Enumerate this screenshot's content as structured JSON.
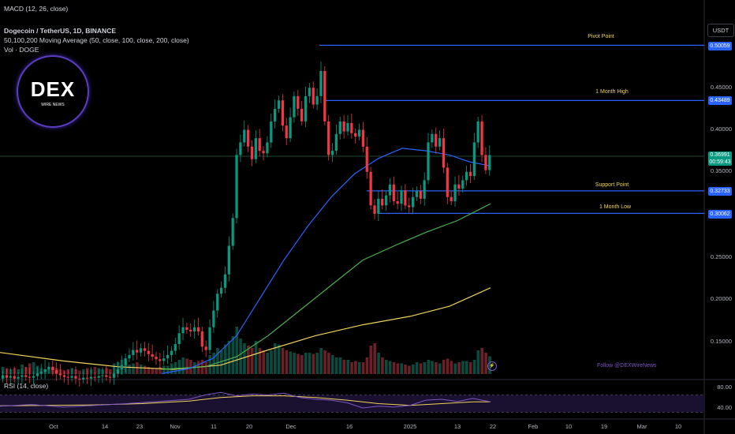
{
  "header": {
    "macd": "MACD (12, 26, close)",
    "symbol": "Dogecoin / TetherUS, 1D, BINANCE",
    "ma": "50,100,200 Moving Average (50, close, 100, close, 200, close)",
    "vol": "Vol · DOGE",
    "rsi": "RSI (14, close)"
  },
  "currency": "USDT",
  "logo": {
    "text": "DEX",
    "sub": "WIRE NEWS"
  },
  "follow": "Follow @DEXWireNews",
  "price_tags": {
    "pivot": "0.50059",
    "high": "0.43489",
    "current": "0.36991",
    "current2": "00:59:43",
    "support": "0.32733",
    "low": "0.30062"
  },
  "level_labels": {
    "pivot": "Pivot Point",
    "high": "1 Month High",
    "support": "Support Point",
    "low": "1 Month Low"
  },
  "colors": {
    "up": "#089981",
    "down": "#f23645",
    "level": "#2962ff",
    "ma50": "#2962ff",
    "ma100": "#4caf50",
    "ma200": "#f0d35a",
    "rsi": "#7e57c2"
  },
  "chart_data": {
    "type": "candlestick",
    "ylim": [
      0.1,
      0.52
    ],
    "y_ticks": [
      "0.45000",
      "0.40000",
      "0.35000",
      "0.25000",
      "0.20000",
      "0.15000"
    ],
    "x_ticks": [
      "Oct",
      "14",
      "23",
      "Nov",
      "11",
      "20",
      "Dec",
      "16",
      "2025",
      "13",
      "22",
      "Feb",
      "10",
      "19",
      "Mar",
      "10"
    ],
    "rsi_ticks": [
      "80.00",
      "40.00"
    ],
    "levels": [
      {
        "name": "Pivot Point",
        "value": 0.50059
      },
      {
        "name": "1 Month High",
        "value": 0.43489
      },
      {
        "name": "Support Point",
        "value": 0.32733
      },
      {
        "name": "1 Month Low",
        "value": 0.30062
      }
    ],
    "candles": [
      [
        0.104,
        0.108
      ],
      [
        0.108,
        0.105
      ],
      [
        0.105,
        0.107
      ],
      [
        0.107,
        0.104
      ],
      [
        0.104,
        0.106
      ],
      [
        0.106,
        0.108
      ],
      [
        0.108,
        0.106
      ],
      [
        0.106,
        0.105
      ],
      [
        0.105,
        0.107
      ],
      [
        0.107,
        0.11
      ],
      [
        0.11,
        0.112
      ],
      [
        0.112,
        0.115
      ],
      [
        0.115,
        0.118
      ],
      [
        0.118,
        0.114
      ],
      [
        0.114,
        0.11
      ],
      [
        0.11,
        0.108
      ],
      [
        0.108,
        0.106
      ],
      [
        0.106,
        0.105
      ],
      [
        0.105,
        0.107
      ],
      [
        0.107,
        0.104
      ],
      [
        0.104,
        0.103
      ],
      [
        0.103,
        0.105
      ],
      [
        0.105,
        0.104
      ],
      [
        0.104,
        0.106
      ],
      [
        0.106,
        0.105
      ],
      [
        0.105,
        0.107
      ],
      [
        0.107,
        0.108
      ],
      [
        0.108,
        0.106
      ],
      [
        0.106,
        0.105
      ],
      [
        0.105,
        0.11
      ],
      [
        0.11,
        0.115
      ],
      [
        0.115,
        0.12
      ],
      [
        0.12,
        0.128
      ],
      [
        0.128,
        0.132
      ],
      [
        0.132,
        0.138
      ],
      [
        0.138,
        0.135
      ],
      [
        0.135,
        0.14
      ],
      [
        0.14,
        0.137
      ],
      [
        0.137,
        0.133
      ],
      [
        0.133,
        0.13
      ],
      [
        0.13,
        0.127
      ],
      [
        0.127,
        0.125
      ],
      [
        0.125,
        0.128
      ],
      [
        0.128,
        0.132
      ],
      [
        0.132,
        0.137
      ],
      [
        0.137,
        0.145
      ],
      [
        0.145,
        0.158
      ],
      [
        0.158,
        0.165
      ],
      [
        0.165,
        0.162
      ],
      [
        0.162,
        0.16
      ],
      [
        0.16,
        0.165
      ],
      [
        0.165,
        0.16
      ],
      [
        0.16,
        0.142
      ],
      [
        0.142,
        0.138
      ],
      [
        0.138,
        0.165
      ],
      [
        0.165,
        0.185
      ],
      [
        0.185,
        0.205
      ],
      [
        0.205,
        0.212
      ],
      [
        0.212,
        0.228
      ],
      [
        0.228,
        0.262
      ],
      [
        0.262,
        0.295
      ],
      [
        0.295,
        0.37
      ],
      [
        0.37,
        0.385
      ],
      [
        0.385,
        0.4
      ],
      [
        0.4,
        0.38
      ],
      [
        0.38,
        0.365
      ],
      [
        0.365,
        0.39
      ],
      [
        0.39,
        0.375
      ],
      [
        0.375,
        0.372
      ],
      [
        0.372,
        0.385
      ],
      [
        0.385,
        0.41
      ],
      [
        0.41,
        0.425
      ],
      [
        0.425,
        0.435
      ],
      [
        0.435,
        0.405
      ],
      [
        0.405,
        0.39
      ],
      [
        0.39,
        0.415
      ],
      [
        0.415,
        0.44
      ],
      [
        0.44,
        0.425
      ],
      [
        0.425,
        0.41
      ],
      [
        0.41,
        0.44
      ],
      [
        0.44,
        0.45
      ],
      [
        0.45,
        0.43
      ],
      [
        0.43,
        0.44
      ],
      [
        0.44,
        0.47
      ],
      [
        0.47,
        0.41
      ],
      [
        0.41,
        0.37
      ],
      [
        0.37,
        0.375
      ],
      [
        0.375,
        0.395
      ],
      [
        0.395,
        0.41
      ],
      [
        0.41,
        0.398
      ],
      [
        0.398,
        0.408
      ],
      [
        0.408,
        0.396
      ],
      [
        0.396,
        0.392
      ],
      [
        0.392,
        0.4
      ],
      [
        0.4,
        0.38
      ],
      [
        0.38,
        0.35
      ],
      [
        0.35,
        0.31
      ],
      [
        0.31,
        0.3
      ],
      [
        0.3,
        0.318
      ],
      [
        0.318,
        0.31
      ],
      [
        0.31,
        0.322
      ],
      [
        0.322,
        0.335
      ],
      [
        0.335,
        0.315
      ],
      [
        0.315,
        0.312
      ],
      [
        0.312,
        0.328
      ],
      [
        0.328,
        0.31
      ],
      [
        0.31,
        0.308
      ],
      [
        0.308,
        0.32
      ],
      [
        0.32,
        0.327
      ],
      [
        0.327,
        0.318
      ],
      [
        0.318,
        0.34
      ],
      [
        0.34,
        0.385
      ],
      [
        0.385,
        0.395
      ],
      [
        0.395,
        0.38
      ],
      [
        0.38,
        0.39
      ],
      [
        0.39,
        0.355
      ],
      [
        0.355,
        0.32
      ],
      [
        0.32,
        0.315
      ],
      [
        0.315,
        0.335
      ],
      [
        0.335,
        0.33
      ],
      [
        0.33,
        0.34
      ],
      [
        0.34,
        0.35
      ],
      [
        0.35,
        0.345
      ],
      [
        0.345,
        0.385
      ],
      [
        0.385,
        0.41
      ],
      [
        0.41,
        0.37
      ],
      [
        0.37,
        0.352
      ],
      [
        0.352,
        0.37
      ]
    ],
    "volume": [
      6,
      5,
      4,
      5,
      4,
      8,
      6,
      9,
      10,
      7,
      5,
      4,
      4,
      6,
      5,
      4,
      3,
      4,
      5,
      4,
      3,
      4,
      5,
      4,
      6,
      5,
      4,
      5,
      4,
      9,
      10,
      12,
      11,
      8,
      9,
      10,
      8,
      7,
      6,
      5,
      5,
      6,
      7,
      7,
      9,
      10,
      12,
      14,
      13,
      12,
      10,
      11,
      12,
      10,
      16,
      18,
      22,
      20,
      25,
      28,
      32,
      40,
      30,
      26,
      24,
      22,
      28,
      22,
      20,
      18,
      20,
      26,
      25,
      22,
      20,
      19,
      18,
      17,
      16,
      18,
      18,
      17,
      18,
      22,
      20,
      18,
      16,
      14,
      14,
      12,
      12,
      10,
      11,
      10,
      10,
      14,
      24,
      26,
      18,
      14,
      12,
      11,
      10,
      9,
      9,
      8,
      7,
      8,
      10,
      9,
      10,
      12,
      11,
      10,
      9,
      12,
      13,
      11,
      9,
      10,
      11,
      11,
      10,
      12,
      20,
      22,
      18,
      15
    ],
    "ma50": [
      [
        205,
        0.11
      ],
      [
        240,
        0.116
      ],
      [
        270,
        0.128
      ],
      [
        300,
        0.155
      ],
      [
        330,
        0.2
      ],
      [
        360,
        0.245
      ],
      [
        390,
        0.285
      ],
      [
        420,
        0.32
      ],
      [
        450,
        0.348
      ],
      [
        480,
        0.366
      ],
      [
        510,
        0.378
      ],
      [
        540,
        0.375
      ],
      [
        570,
        0.37
      ],
      [
        595,
        0.362
      ],
      [
        622,
        0.357
      ]
    ],
    "ma100": [
      [
        205,
        0.115
      ],
      [
        260,
        0.118
      ],
      [
        300,
        0.13
      ],
      [
        340,
        0.155
      ],
      [
        380,
        0.185
      ],
      [
        420,
        0.215
      ],
      [
        460,
        0.245
      ],
      [
        500,
        0.262
      ],
      [
        540,
        0.278
      ],
      [
        580,
        0.292
      ],
      [
        622,
        0.312
      ]
    ],
    "ma200": [
      [
        0,
        0.135
      ],
      [
        80,
        0.125
      ],
      [
        150,
        0.118
      ],
      [
        220,
        0.115
      ],
      [
        280,
        0.12
      ],
      [
        340,
        0.138
      ],
      [
        400,
        0.155
      ],
      [
        460,
        0.168
      ],
      [
        520,
        0.178
      ],
      [
        570,
        0.19
      ],
      [
        622,
        0.212
      ]
    ],
    "rsi": [
      [
        0,
        44
      ],
      [
        40,
        48
      ],
      [
        80,
        42
      ],
      [
        120,
        46
      ],
      [
        160,
        50
      ],
      [
        200,
        55
      ],
      [
        240,
        60
      ],
      [
        260,
        70
      ],
      [
        280,
        76
      ],
      [
        300,
        68
      ],
      [
        320,
        72
      ],
      [
        340,
        70
      ],
      [
        360,
        74
      ],
      [
        380,
        64
      ],
      [
        400,
        60
      ],
      [
        420,
        58
      ],
      [
        440,
        52
      ],
      [
        460,
        40
      ],
      [
        480,
        44
      ],
      [
        500,
        42
      ],
      [
        520,
        46
      ],
      [
        540,
        58
      ],
      [
        560,
        60
      ],
      [
        580,
        55
      ],
      [
        600,
        62
      ],
      [
        622,
        54
      ]
    ],
    "rsi_ma": [
      [
        0,
        45
      ],
      [
        60,
        46
      ],
      [
        120,
        47
      ],
      [
        180,
        50
      ],
      [
        240,
        56
      ],
      [
        280,
        64
      ],
      [
        320,
        68
      ],
      [
        360,
        68
      ],
      [
        400,
        64
      ],
      [
        440,
        58
      ],
      [
        480,
        50
      ],
      [
        520,
        46
      ],
      [
        560,
        50
      ],
      [
        600,
        54
      ],
      [
        622,
        54
      ]
    ]
  }
}
